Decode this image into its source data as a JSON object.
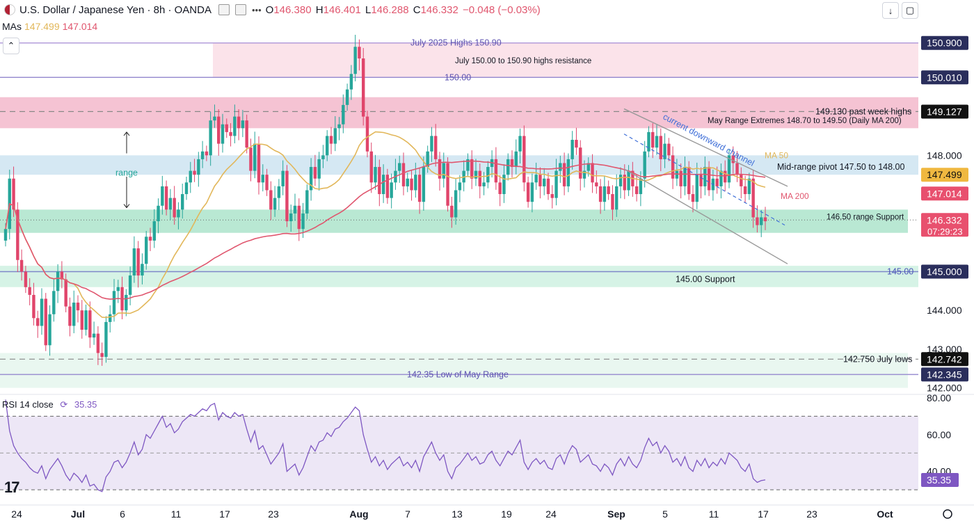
{
  "header": {
    "symbol": "U.S. Dollar / Japanese Yen · 8h · OANDA",
    "open": "146.380",
    "high": "146.401",
    "low": "146.288",
    "close": "146.332",
    "change": "−0.048 (−0.03%)",
    "o_label": "O",
    "h_label": "H",
    "l_label": "L",
    "c_label": "C",
    "more": "•••"
  },
  "mas": {
    "label": "MAs",
    "ma50": "147.499",
    "ma200": "147.014"
  },
  "rsi_legend": {
    "label": "RSI 14 close",
    "value": "35.35"
  },
  "colors": {
    "up": "#26a69a",
    "down": "#e0456b",
    "ma50": "#e2b75a",
    "ma200": "#e0566e",
    "rsi": "#7e57c2"
  },
  "chart_data": {
    "type": "candlestick",
    "title": "U.S. Dollar / Japanese Yen · 8h · OANDA",
    "ylim": [
      141.85,
      151.2
    ],
    "y_ticks": [
      "144.000",
      "143.000",
      "142.000",
      "148.000"
    ],
    "x_ticks": [
      "24",
      "Jul",
      "6",
      "11",
      "17",
      "23",
      "Aug",
      "7",
      "13",
      "19",
      "24",
      "Sep",
      "5",
      "11",
      "17",
      "23",
      "Oct"
    ],
    "price_tags": [
      {
        "label": "150.900",
        "kind": "dark"
      },
      {
        "label": "150.010",
        "kind": "dark"
      },
      {
        "label": "149.127",
        "kind": "black"
      },
      {
        "label": "147.499",
        "kind": "ma50"
      },
      {
        "label": "147.014",
        "kind": "ma200"
      },
      {
        "label": "146.332",
        "kind": "last",
        "countdown": "07:29:23"
      },
      {
        "label": "145.000",
        "kind": "dark"
      },
      {
        "label": "142.742",
        "kind": "black"
      },
      {
        "label": "142.345",
        "kind": "dark"
      }
    ],
    "annotations": {
      "july_highs": "July 2025 Highs 150.90",
      "july_resistance": "July 150.00 to 150.90 highs resistance",
      "lvl_150": "150.00",
      "past_week_highs": "149.130 past week highs",
      "may_extremes": "May Range Extremes 148.70 to 149.50 (Daily MA 200)",
      "channel": "current downward channel",
      "ma50_label": "MA 50",
      "mid_pivot": "Mid-range pivot 147.50 to 148.00",
      "ma200_label": "MA 200",
      "range": "range",
      "support_146_5": "146.50 range Support",
      "lvl_145": "145.00",
      "support_145": "145.00 Support",
      "july_lows": "142.750 July lows",
      "may_low": "142.35 Low of May Range"
    },
    "zones": [
      {
        "name": "July highs resistance",
        "from": 150.0,
        "to": 150.9
      },
      {
        "name": "May range extremes",
        "from": 148.7,
        "to": 149.5
      },
      {
        "name": "Mid-range pivot",
        "from": 147.5,
        "to": 148.0
      },
      {
        "name": "146.50 support",
        "from": 146.0,
        "to": 146.6
      },
      {
        "name": "145.00 support",
        "from": 144.6,
        "to": 145.15
      },
      {
        "name": "May low zone",
        "from": 142.0,
        "to": 142.9
      }
    ],
    "levels": {
      "july_high": 150.9,
      "lvl150": 150.01,
      "past_week_highs": 149.13,
      "lvl145": 145.0,
      "july_lows": 142.742,
      "may_low": 142.345,
      "last": 146.332
    },
    "candles_note": "approximate OHLC sequence, 8h bars from Jun 24 to Sep 17, 2025",
    "closes": [
      146.1,
      147.4,
      146.6,
      145.3,
      145.0,
      144.6,
      144.4,
      143.8,
      143.6,
      144.3,
      143.1,
      143.9,
      144.5,
      145.0,
      144.8,
      144.1,
      143.6,
      144.2,
      144.0,
      143.5,
      144.0,
      143.3,
      143.4,
      142.9,
      142.8,
      143.7,
      143.9,
      144.5,
      144.6,
      144.0,
      144.4,
      144.9,
      145.6,
      144.9,
      145.2,
      145.9,
      145.8,
      146.3,
      146.7,
      147.2,
      146.6,
      146.9,
      146.4,
      146.6,
      147.0,
      147.3,
      147.6,
      147.5,
      147.9,
      148.1,
      148.0,
      148.9,
      149.0,
      148.3,
      148.8,
      148.6,
      148.5,
      149.0,
      148.7,
      148.9,
      148.2,
      147.6,
      148.3,
      147.3,
      147.5,
      147.1,
      146.6,
      146.9,
      147.2,
      147.6,
      146.3,
      146.5,
      146.7,
      146.1,
      146.5,
      147.1,
      147.7,
      147.4,
      147.9,
      148.0,
      148.5,
      148.3,
      148.7,
      148.8,
      149.3,
      149.7,
      150.1,
      150.8,
      150.5,
      149.0,
      148.1,
      147.3,
      147.7,
      147.0,
      147.5,
      146.9,
      147.3,
      147.6,
      147.8,
      147.2,
      147.4,
      147.1,
      147.5,
      146.8,
      147.7,
      148.1,
      148.5,
      147.9,
      147.4,
      147.8,
      146.7,
      146.4,
      147.1,
      147.3,
      147.6,
      147.9,
      147.4,
      147.6,
      147.2,
      147.3,
      147.7,
      147.9,
      147.3,
      147.0,
      147.5,
      147.9,
      147.7,
      148.1,
      148.5,
      147.3,
      146.8,
      147.3,
      147.5,
      147.2,
      147.4,
      147.0,
      146.9,
      147.6,
      147.8,
      147.2,
      147.9,
      148.4,
      148.2,
      147.4,
      147.6,
      147.8,
      147.3,
      147.2,
      146.8,
      147.2,
      147.0,
      146.6,
      147.2,
      147.5,
      147.1,
      147.6,
      147.2,
      147.0,
      147.4,
      148.1,
      148.6,
      148.2,
      148.5,
      147.9,
      148.3,
      148.0,
      147.4,
      147.6,
      147.2,
      147.7,
      147.0,
      146.8,
      147.5,
      147.2,
      147.7,
      147.1,
      147.4,
      147.2,
      147.6,
      147.3,
      148.0,
      147.8,
      147.5,
      147.2,
      147.0,
      147.4,
      146.4,
      146.2,
      146.4,
      146.3
    ],
    "rsi": {
      "ylim": [
        27,
        80
      ],
      "ticks": [
        "80.00",
        "60.00",
        "40.00"
      ],
      "bands": [
        70,
        30
      ],
      "last": 35.35,
      "values": [
        79,
        62,
        54,
        50,
        47,
        45,
        42,
        40,
        39,
        43,
        36,
        41,
        44,
        47,
        43,
        38,
        35,
        39,
        37,
        34,
        38,
        32,
        33,
        30,
        29,
        37,
        40,
        45,
        46,
        42,
        45,
        50,
        56,
        49,
        52,
        60,
        58,
        62,
        66,
        70,
        64,
        66,
        61,
        63,
        67,
        69,
        71,
        70,
        72,
        74,
        73,
        76,
        77,
        68,
        72,
        70,
        69,
        72,
        70,
        71,
        63,
        56,
        62,
        52,
        54,
        49,
        44,
        47,
        50,
        55,
        40,
        42,
        44,
        38,
        42,
        48,
        54,
        51,
        56,
        57,
        61,
        59,
        63,
        64,
        67,
        69,
        72,
        75,
        73,
        60,
        52,
        45,
        48,
        43,
        46,
        41,
        44,
        46,
        48,
        43,
        45,
        42,
        46,
        40,
        48,
        52,
        56,
        50,
        46,
        49,
        40,
        36,
        42,
        44,
        47,
        50,
        46,
        48,
        44,
        45,
        49,
        51,
        46,
        43,
        47,
        51,
        49,
        53,
        57,
        45,
        41,
        45,
        47,
        44,
        46,
        42,
        41,
        47,
        49,
        44,
        50,
        54,
        52,
        45,
        47,
        49,
        44,
        43,
        40,
        44,
        42,
        38,
        44,
        47,
        43,
        48,
        44,
        42,
        46,
        53,
        58,
        54,
        56,
        50,
        54,
        51,
        45,
        47,
        43,
        48,
        42,
        40,
        46,
        43,
        47,
        42,
        45,
        43,
        47,
        44,
        50,
        48,
        46,
        42,
        40,
        44,
        36,
        34,
        35,
        35.35
      ]
    }
  }
}
